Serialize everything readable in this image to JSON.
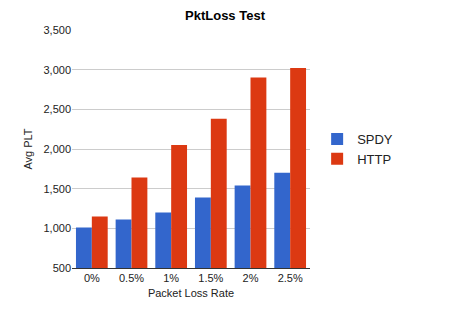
{
  "chart_data": {
    "type": "bar",
    "title": "PktLoss Test",
    "x_label": "Packet Loss Rate",
    "y_label": "Avg PLT",
    "categories": [
      "0%",
      "0.5%",
      "1%",
      "1.5%",
      "2%",
      "2.5%"
    ],
    "series": [
      {
        "name": "SPDY",
        "color": "#3366cc",
        "values": [
          1010,
          1110,
          1200,
          1390,
          1540,
          1700
        ]
      },
      {
        "name": "HTTP",
        "color": "#dc3912",
        "values": [
          1150,
          1640,
          2050,
          2380,
          2900,
          3020
        ]
      }
    ],
    "ylim": [
      500,
      3500
    ],
    "yticks": [
      500,
      {
        "value": 1000,
        "label": "1,000"
      },
      {
        "value": 1500,
        "label": "1,500"
      },
      {
        "value": 2000,
        "label": "2,000"
      },
      {
        "value": 2500,
        "label": "2,500"
      },
      {
        "value": 3000,
        "label": "3,000"
      },
      {
        "value": 3500,
        "label": "3,500"
      }
    ],
    "grid": true,
    "legend": "right"
  }
}
